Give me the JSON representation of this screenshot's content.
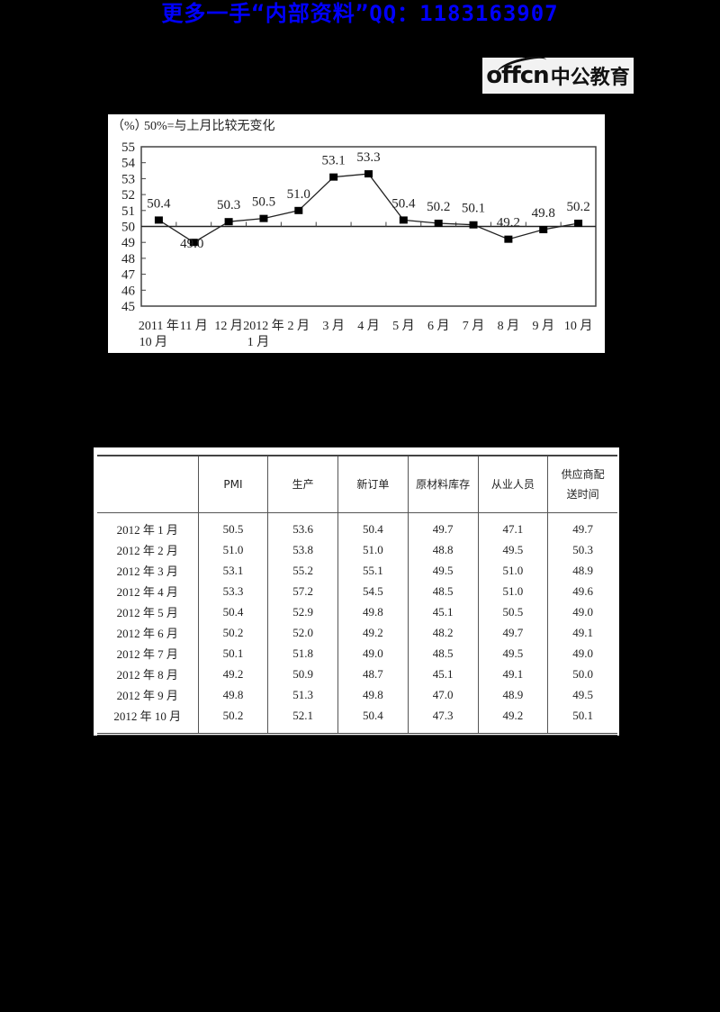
{
  "banner": {
    "text": "更多一手“内部资料”QQ：1183163907",
    "color": "#0000ff"
  },
  "logo": {
    "text_en": "offcn",
    "text_cn": "中公教育"
  },
  "chart": {
    "unit_label": "（%）",
    "note": "50%=与上月比较无变化"
  },
  "chart_data": {
    "type": "line",
    "title": "",
    "subtitle": "50%=与上月比较无变化",
    "ylabel": "（%）",
    "xlabel": "",
    "ylim": [
      45,
      55
    ],
    "yticks": [
      45,
      46,
      47,
      48,
      49,
      50,
      51,
      52,
      53,
      54,
      55
    ],
    "reference_line": 50,
    "grid": false,
    "legend": null,
    "categories": [
      "2011年10月",
      "11月",
      "12月",
      "2012年1月",
      "2月",
      "3月",
      "4月",
      "5月",
      "6月",
      "7月",
      "8月",
      "9月",
      "10月"
    ],
    "category_labels": [
      [
        "2011 年",
        "10 月"
      ],
      [
        "11 月",
        ""
      ],
      [
        "12 月",
        ""
      ],
      [
        "2012 年",
        "1 月"
      ],
      [
        "2 月",
        ""
      ],
      [
        "3 月",
        ""
      ],
      [
        "4 月",
        ""
      ],
      [
        "5 月",
        ""
      ],
      [
        "6 月",
        ""
      ],
      [
        "7 月",
        ""
      ],
      [
        "8 月",
        ""
      ],
      [
        "9 月",
        ""
      ],
      [
        "10 月",
        ""
      ]
    ],
    "series": [
      {
        "name": "PMI",
        "values": [
          50.4,
          49.0,
          50.3,
          50.5,
          51.0,
          53.1,
          53.3,
          50.4,
          50.2,
          50.1,
          49.2,
          49.8,
          50.2
        ],
        "data_labels": [
          "50.4",
          "49.0",
          "50.3",
          "50.5",
          "51.0",
          "53.1",
          "53.3",
          "50.4",
          "50.2",
          "50.1",
          "49.2",
          "49.8",
          "50.2"
        ]
      }
    ],
    "x_axis_text": {
      "row1": "2011 年 11 月 12 月 2012 年 2 月   3 月   4 月   5 月   6 月   7 月   8 月   9 月   10 月",
      "row2_a": "10 月",
      "row2_b": "1 月"
    }
  },
  "table": {
    "headers": [
      "",
      "PMI",
      "生产",
      "新订单",
      "原材料库存",
      "从业人员",
      "供应商配送时间"
    ],
    "header_lines": {
      "supplier": [
        "供应商配",
        "送时间"
      ]
    },
    "rows": [
      [
        "2012 年 1 月",
        "50.5",
        "53.6",
        "50.4",
        "49.7",
        "47.1",
        "49.7"
      ],
      [
        "2012 年 2 月",
        "51.0",
        "53.8",
        "51.0",
        "48.8",
        "49.5",
        "50.3"
      ],
      [
        "2012 年 3 月",
        "53.1",
        "55.2",
        "55.1",
        "49.5",
        "51.0",
        "48.9"
      ],
      [
        "2012 年 4 月",
        "53.3",
        "57.2",
        "54.5",
        "48.5",
        "51.0",
        "49.6"
      ],
      [
        "2012 年 5 月",
        "50.4",
        "52.9",
        "49.8",
        "45.1",
        "50.5",
        "49.0"
      ],
      [
        "2012 年 6 月",
        "50.2",
        "52.0",
        "49.2",
        "48.2",
        "49.7",
        "49.1"
      ],
      [
        "2012 年 7 月",
        "50.1",
        "51.8",
        "49.0",
        "48.5",
        "49.5",
        "49.0"
      ],
      [
        "2012 年 8 月",
        "49.2",
        "50.9",
        "48.7",
        "45.1",
        "49.1",
        "50.0"
      ],
      [
        "2012 年 9 月",
        "49.8",
        "51.3",
        "49.8",
        "47.0",
        "48.9",
        "49.5"
      ],
      [
        "2012 年 10 月",
        "50.2",
        "52.1",
        "50.4",
        "47.3",
        "49.2",
        "50.1"
      ]
    ]
  }
}
